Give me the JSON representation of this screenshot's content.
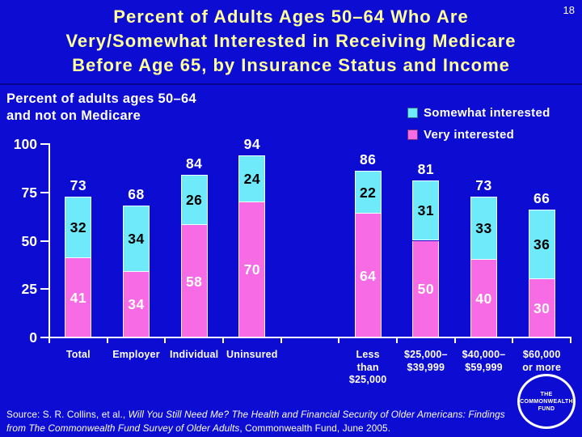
{
  "slide_number": "18",
  "title": "Percent of Adults Ages 50–64 Who Are\nVery/Somewhat Interested in Receiving Medicare\nBefore Age 65, by Insurance Status and Income",
  "subtitle": "Percent of adults ages 50–64\nand not on Medicare",
  "legend": [
    {
      "label": "Somewhat interested",
      "color": "#6FEAFA"
    },
    {
      "label": "Very interested",
      "color": "#F76CE4"
    }
  ],
  "chart_data": {
    "type": "bar",
    "stacked": true,
    "title": "Percent of Adults Ages 50–64 Who Are Very/Somewhat Interested in Receiving Medicare Before Age 65, by Insurance Status and Income",
    "axis_note": "Percent of adults ages 50–64 and not on Medicare",
    "categories": [
      "Total",
      "Employer",
      "Individual",
      "Uninsured",
      "Less\nthan\n$25,000",
      "$25,000–\n$39,999",
      "$40,000–\n$59,999",
      "$60,000\nor more"
    ],
    "series": [
      {
        "name": "Very interested",
        "color": "#F76CE4",
        "values": [
          41,
          34,
          58,
          70,
          64,
          50,
          40,
          30
        ]
      },
      {
        "name": "Somewhat interested",
        "color": "#6FEAFA",
        "values": [
          32,
          34,
          26,
          24,
          22,
          31,
          33,
          36
        ]
      }
    ],
    "totals": [
      73,
      68,
      84,
      94,
      86,
      81,
      73,
      66
    ],
    "xlabel": "",
    "ylabel": "",
    "ylim": [
      0,
      100
    ],
    "yticks": [
      0,
      25,
      50,
      75,
      100
    ],
    "grid": false,
    "legend_position": "top-right",
    "category_slots": [
      0,
      1,
      2,
      3,
      5,
      6,
      7,
      8
    ],
    "total_slots": 9
  },
  "source": {
    "line1_roman": "Source: S. R. Collins, et al., ",
    "line1_italic": "Will You Still Need Me? The Health and Financial Security of Older Americans: Findings",
    "line2_italic": "from The Commonwealth Fund Survey of Older Adults",
    "line2_roman": ", Commonwealth Fund, June 2005."
  },
  "logo": {
    "text": "THE\nCOMMONWEALTH\nFUND"
  },
  "colors": {
    "background": "#0C0CD3",
    "title": "#FFFF99",
    "somewhat": "#6FEAFA",
    "very": "#F76CE4",
    "axis": "#FFFFFF",
    "somewhat_label_text": "#000000",
    "very_label_text": "#FFFFFF"
  }
}
